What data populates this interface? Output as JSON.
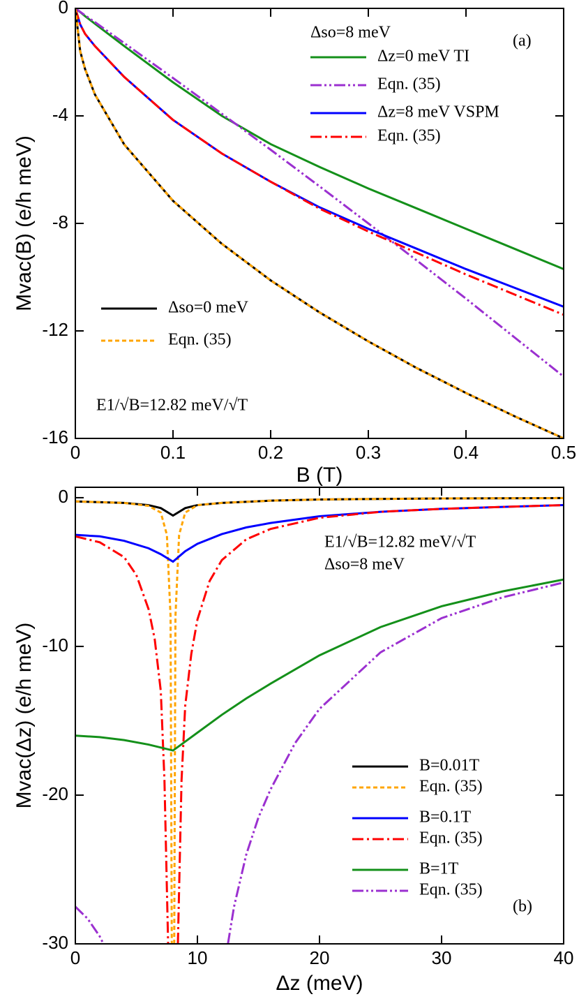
{
  "chart_data": [
    {
      "type": "line",
      "panel_label": "(a)",
      "xlabel": "B (T)",
      "ylabel": "Mvac(B) (e/h meV)",
      "xlim": [
        0,
        0.5
      ],
      "ylim": [
        -16,
        0
      ],
      "xticks": [
        0,
        0.1,
        0.2,
        0.3,
        0.4,
        0.5
      ],
      "yticks": [
        0,
        -4,
        -8,
        -12,
        -16
      ],
      "annotations": [
        "Δso=8 meV",
        "E1/√B=12.82 meV/√T"
      ],
      "x": [
        0,
        0.005,
        0.01,
        0.02,
        0.05,
        0.1,
        0.15,
        0.2,
        0.25,
        0.3,
        0.35,
        0.4,
        0.45,
        0.5
      ],
      "series": [
        {
          "name": "Δz=0 meV TI",
          "color": "#14901a",
          "style": "solid",
          "values": [
            0,
            -0.14,
            -0.29,
            -0.57,
            -1.4,
            -2.75,
            -4.0,
            -5.05,
            -5.9,
            -6.7,
            -7.45,
            -8.2,
            -8.95,
            -9.7
          ]
        },
        {
          "name": "Eqn. (35)",
          "color": "#9b30d0",
          "style": "dash-dot-dot",
          "values": [
            0,
            -0.13,
            -0.26,
            -0.51,
            -1.29,
            -2.59,
            -3.92,
            -5.26,
            -6.62,
            -8.0,
            -9.39,
            -10.8,
            -12.25,
            -13.7
          ]
        },
        {
          "name": "Δz=8 meV VSPM",
          "color": "#0000ff",
          "style": "solid",
          "values": [
            0,
            -0.6,
            -0.95,
            -1.4,
            -2.55,
            -4.15,
            -5.4,
            -6.45,
            -7.4,
            -8.2,
            -8.95,
            -9.7,
            -10.4,
            -11.1
          ]
        },
        {
          "name": "Eqn. (35)",
          "color": "#ff0000",
          "style": "dash-dot",
          "values": [
            0,
            -0.6,
            -0.95,
            -1.4,
            -2.55,
            -4.15,
            -5.4,
            -6.45,
            -7.45,
            -8.3,
            -9.1,
            -9.9,
            -10.65,
            -11.4
          ]
        },
        {
          "name": "Δso=0 meV",
          "color": "#000000",
          "style": "solid",
          "values": [
            0,
            -1.6,
            -2.26,
            -3.2,
            -5.06,
            -7.16,
            -8.76,
            -10.12,
            -11.31,
            -12.39,
            -13.39,
            -14.31,
            -15.18,
            -16.0
          ]
        },
        {
          "name": "Eqn. (35)",
          "color": "#ffa500",
          "style": "dotted",
          "values": [
            0,
            -1.6,
            -2.26,
            -3.2,
            -5.06,
            -7.16,
            -8.76,
            -10.12,
            -11.31,
            -12.39,
            -13.39,
            -14.31,
            -15.18,
            -16.0
          ]
        }
      ]
    },
    {
      "type": "line",
      "panel_label": "(b)",
      "xlabel": "Δz (meV)",
      "ylabel": "Mvac(Δz) (e/h meV)",
      "xlim": [
        0,
        40
      ],
      "ylim": [
        -30,
        0.7
      ],
      "xticks": [
        0,
        10,
        20,
        30,
        40
      ],
      "yticks": [
        0,
        -10,
        -20,
        -30
      ],
      "annotations": [
        "E1/√B=12.82 meV/√T",
        "Δso=8 meV"
      ],
      "series": [
        {
          "name": "B=0.01T",
          "color": "#000000",
          "style": "solid",
          "x": [
            0,
            4,
            6,
            7,
            8,
            9,
            10,
            12,
            16,
            20,
            30,
            40
          ],
          "values": [
            -0.25,
            -0.35,
            -0.5,
            -0.7,
            -1.2,
            -0.7,
            -0.5,
            -0.35,
            -0.2,
            -0.12,
            -0.05,
            -0.03
          ]
        },
        {
          "name": "Eqn. (35)",
          "color": "#ffa500",
          "style": "dotted",
          "x": [
            0,
            4,
            6,
            7,
            7.5,
            7.8,
            7.9,
            8,
            8.1,
            8.2,
            8.5,
            9,
            10,
            12,
            16,
            20,
            30,
            40
          ],
          "values": [
            -0.25,
            -0.35,
            -0.55,
            -1.0,
            -2.5,
            -8,
            -30,
            null,
            -30,
            -8,
            -2.5,
            -1.0,
            -0.5,
            -0.35,
            -0.2,
            -0.12,
            -0.05,
            -0.03
          ]
        },
        {
          "name": "B=0.1T",
          "color": "#0000ff",
          "style": "solid",
          "x": [
            0,
            2,
            4,
            6,
            7,
            8,
            9,
            10,
            12,
            14,
            16,
            20,
            25,
            30,
            35,
            40
          ],
          "values": [
            -2.5,
            -2.6,
            -2.9,
            -3.4,
            -3.8,
            -4.3,
            -3.6,
            -3.1,
            -2.45,
            -2.0,
            -1.7,
            -1.25,
            -0.95,
            -0.75,
            -0.62,
            -0.5
          ]
        },
        {
          "name": "Eqn. (35)",
          "color": "#ff0000",
          "style": "dash-dot",
          "x": [
            0,
            2,
            4,
            5,
            6,
            6.5,
            7,
            7.3,
            7.6,
            8,
            8.4,
            8.7,
            9,
            9.5,
            10,
            11,
            12,
            14,
            16,
            20,
            25,
            30,
            35,
            40
          ],
          "values": [
            -2.6,
            -3.0,
            -4.0,
            -5.2,
            -7.5,
            -9.5,
            -13,
            -19,
            -30,
            null,
            -30,
            -19,
            -14,
            -10.5,
            -8.2,
            -5.6,
            -4.2,
            -2.8,
            -2.1,
            -1.35,
            -0.95,
            -0.75,
            -0.62,
            -0.5
          ]
        },
        {
          "name": "B=1T",
          "color": "#14901a",
          "style": "solid",
          "x": [
            0,
            2,
            4,
            6,
            7,
            8,
            9,
            10,
            12,
            14,
            16,
            20,
            25,
            30,
            35,
            40
          ],
          "values": [
            -16,
            -16.1,
            -16.3,
            -16.6,
            -16.8,
            -17.0,
            -16.4,
            -15.8,
            -14.6,
            -13.5,
            -12.5,
            -10.6,
            -8.7,
            -7.3,
            -6.3,
            -5.5
          ]
        },
        {
          "name": "Eqn. (35)",
          "color": "#9b30d0",
          "style": "dash-dot-dot",
          "x": [
            0,
            1,
            2,
            2.3,
            8,
            12.5,
            13,
            14,
            15,
            16,
            18,
            20,
            25,
            30,
            35,
            40
          ],
          "values": [
            -27.5,
            -28.3,
            -29.5,
            -30,
            null,
            -30,
            -27.5,
            -24,
            -21.5,
            -19.6,
            -16.5,
            -14.2,
            -10.4,
            -8.1,
            -6.7,
            -5.7
          ]
        }
      ]
    }
  ]
}
